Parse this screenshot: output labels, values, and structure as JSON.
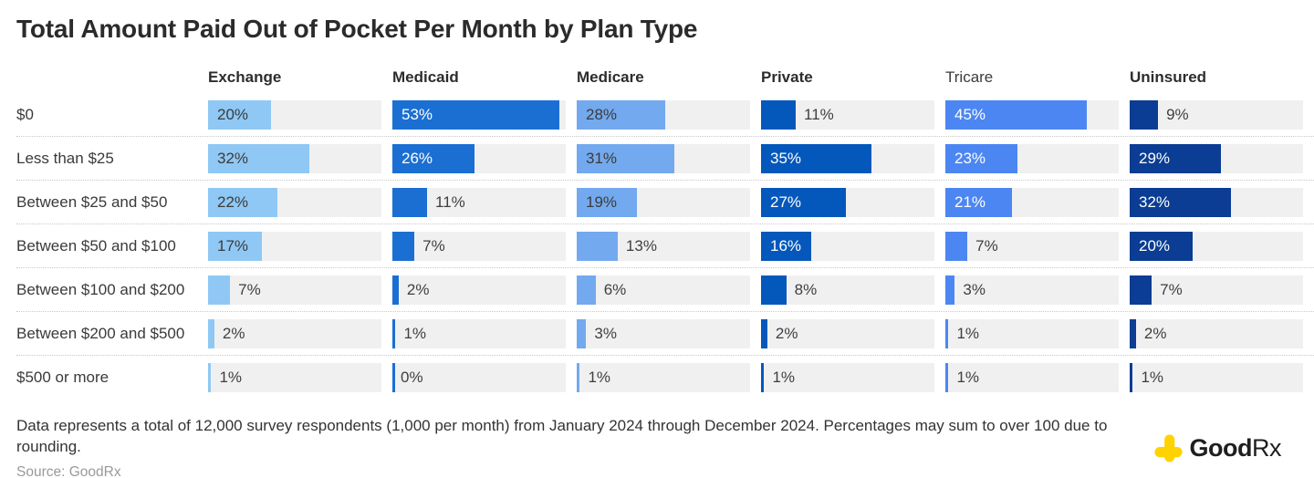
{
  "title": "Total Amount Paid Out of Pocket Per Month by Plan Type",
  "chart_data": {
    "type": "bar",
    "orientation": "horizontal",
    "title": "Total Amount Paid Out of Pocket Per Month by Plan Type",
    "categories": [
      "$0",
      "Less than $25",
      "Between $25 and $50",
      "Between $50 and $100",
      "Between $100 and $200",
      "Between $200 and $500",
      "$500 or more"
    ],
    "series": [
      {
        "name": "Exchange",
        "color": "#8fc8f4",
        "inside_label_color": "#3b3b3b",
        "header_bold": true,
        "values": [
          20,
          32,
          22,
          17,
          7,
          2,
          1
        ]
      },
      {
        "name": "Medicaid",
        "color": "#1b6fd3",
        "inside_label_color": "#ffffff",
        "header_bold": true,
        "values": [
          53,
          26,
          11,
          7,
          2,
          1,
          0
        ]
      },
      {
        "name": "Medicare",
        "color": "#73a9ee",
        "inside_label_color": "#3b3b3b",
        "header_bold": true,
        "values": [
          28,
          31,
          19,
          13,
          6,
          3,
          1
        ]
      },
      {
        "name": "Private",
        "color": "#0458bb",
        "inside_label_color": "#ffffff",
        "header_bold": true,
        "values": [
          11,
          35,
          27,
          16,
          8,
          2,
          1
        ]
      },
      {
        "name": "Tricare",
        "color": "#4c86f2",
        "inside_label_color": "#ffffff",
        "header_bold": false,
        "values": [
          45,
          23,
          21,
          7,
          3,
          1,
          1
        ]
      },
      {
        "name": "Uninsured",
        "color": "#0a3d93",
        "inside_label_color": "#ffffff",
        "header_bold": true,
        "values": [
          9,
          29,
          32,
          20,
          7,
          2,
          1
        ]
      }
    ],
    "value_suffix": "%",
    "scale_max": 55,
    "inside_label_min": 16,
    "track_color": "#f0f0f1",
    "row_separator": "dotted",
    "legend_position": "none"
  },
  "footer": {
    "note": "Data represents a total of 12,000 survey respondents (1,000 per month) from January 2024 through December 2024. Percentages may sum to over 100 due to rounding.",
    "source": "Source: GoodRx"
  },
  "logo": {
    "text_bold": "Good",
    "text_regular": "Rx",
    "icon": "plus-cross-icon",
    "icon_color": "#ffd200"
  }
}
